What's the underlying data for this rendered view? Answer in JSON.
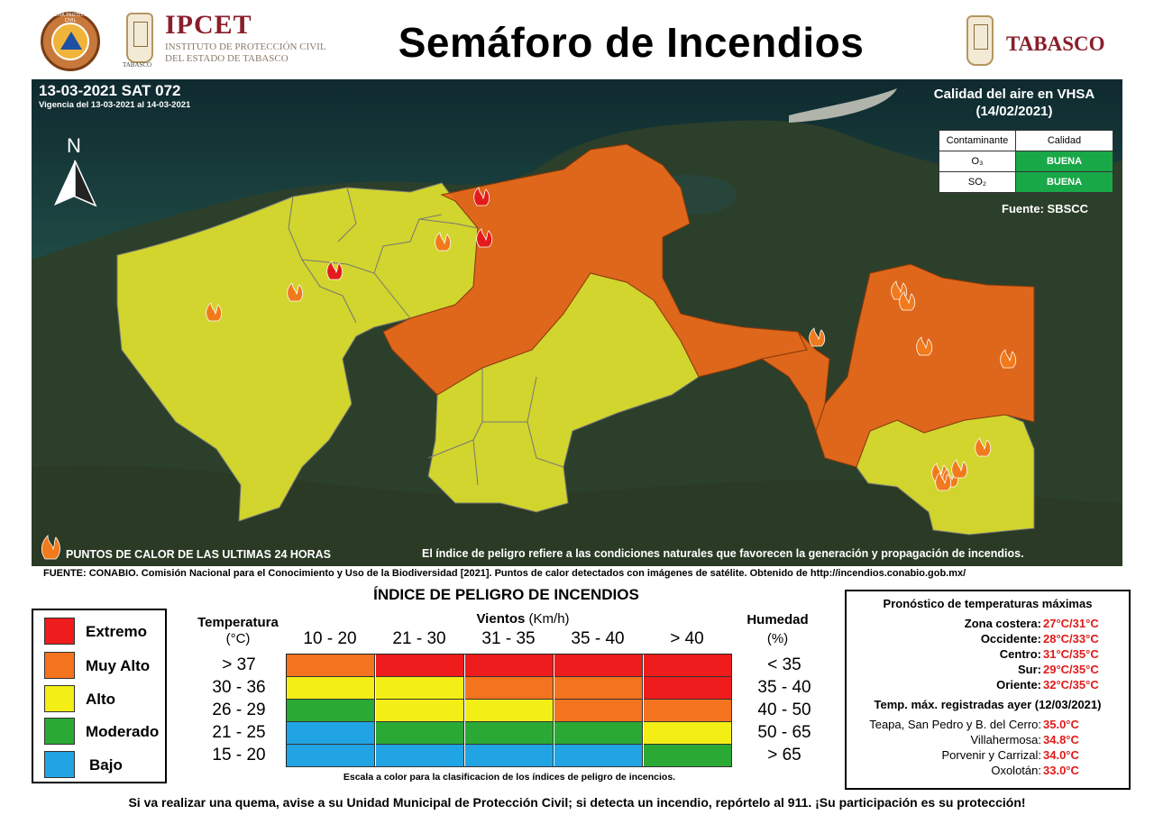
{
  "header": {
    "seal_text": "SISTEMA PROTECCIÓN CIVIL",
    "ipcet_crest_label": "TABASCO",
    "ipcet_title": "IPCET",
    "ipcet_sub1": "INSTITUTO DE PROTECCIÓN CIVIL",
    "ipcet_sub2": "DEL ESTADO DE TABASCO",
    "main_title": "Semáforo de Incendios",
    "state_name": "TABASCO"
  },
  "map": {
    "date": "13-03-2021 SAT 072",
    "validity": "Vigencia del 13-03-2021 al 14-03-2021",
    "north": "N",
    "air_quality": {
      "title": "Calidad del aire en VHSA",
      "date": "(14/02/2021)",
      "col_pollutant": "Contaminante",
      "col_quality": "Calidad",
      "rows": [
        {
          "pollutant": "O₃",
          "quality": "BUENA"
        },
        {
          "pollutant": "SO₂",
          "quality": "BUENA"
        }
      ],
      "source": "Fuente: SBSCC"
    },
    "hotspot_label": "PUNTOS DE CALOR DE LAS ULTIMAS 24 HORAS",
    "note": "El índice de peligro refiere a las condiciones naturales que favorecen la generación y propagación de incendios.",
    "colors": {
      "alto": "#e3e62e",
      "muy_alto": "#ee6a1a",
      "fire": "#f07a1c",
      "fire_red": "#e41b1b"
    }
  },
  "source": "FUENTE: CONABIO. Comisión Nacional para el Conocimiento y Uso de la Biodiversidad [2021]. Puntos de calor detectados con imágenes de satélite. Obtenido de http://incendios.conabio.gob.mx/",
  "legend": [
    {
      "label": "Extremo",
      "color": "#ee1c1c"
    },
    {
      "label": "Muy Alto",
      "color": "#f4731f"
    },
    {
      "label": "Alto",
      "color": "#f2ee16"
    },
    {
      "label": "Moderado",
      "color": "#2aa935"
    },
    {
      "label": "Bajo",
      "color": "#21a4e4"
    }
  ],
  "index": {
    "title": "ÍNDICE DE PELIGRO DE INCENDIOS",
    "temp_header": "Temperatura",
    "temp_unit": "(°C)",
    "wind_header": "Vientos",
    "wind_unit": "(Km/h)",
    "hum_header": "Humedad",
    "hum_unit": "(%)",
    "wind_cols": [
      "10 - 20",
      "21 - 30",
      "31 - 35",
      "35 - 40",
      "> 40"
    ],
    "temp_rows": [
      "> 37",
      "30 - 36",
      "26 - 29",
      "21 - 25",
      "15 - 20"
    ],
    "hum_rows": [
      "< 35",
      "35 - 40",
      "40 - 50",
      "50 - 65",
      "> 65"
    ],
    "grid": [
      [
        "#f4731f",
        "#ee1c1c",
        "#ee1c1c",
        "#ee1c1c",
        "#ee1c1c"
      ],
      [
        "#f2ee16",
        "#f2ee16",
        "#f4731f",
        "#f4731f",
        "#ee1c1c"
      ],
      [
        "#2aa935",
        "#f2ee16",
        "#f2ee16",
        "#f4731f",
        "#f4731f"
      ],
      [
        "#21a4e4",
        "#2aa935",
        "#2aa935",
        "#2aa935",
        "#f2ee16"
      ],
      [
        "#21a4e4",
        "#21a4e4",
        "#21a4e4",
        "#21a4e4",
        "#2aa935"
      ]
    ],
    "scale_note": "Escala a color para la clasificacion de los índices de peligro de incencios."
  },
  "forecast": {
    "title": "Pronóstico de temperaturas máximas",
    "zones": [
      {
        "label": "Zona costera:",
        "value": "27°C/31°C"
      },
      {
        "label": "Occidente:",
        "value": "28°C/33°C"
      },
      {
        "label": "Centro:",
        "value": "31°C/35°C"
      },
      {
        "label": "Sur:",
        "value": "29°C/35°C"
      },
      {
        "label": "Oriente:",
        "value": "32°C/35°C"
      }
    ],
    "recorded_title": "Temp. máx. registradas ayer (12/03/2021)",
    "recorded": [
      {
        "label": "Teapa, San Pedro y B. del Cerro:",
        "value": "35.0°C"
      },
      {
        "label": "Villahermosa:",
        "value": "34.8°C"
      },
      {
        "label": "Porvenir y Carrizal:",
        "value": "34.0°C"
      },
      {
        "label": "Oxolotán:",
        "value": "33.0°C"
      }
    ]
  },
  "footer": "Si va realizar una quema, avise a su Unidad Municipal de Protección Civil; si detecta un incendio, repórtelo al 911.   ¡Su participación es su protección!"
}
